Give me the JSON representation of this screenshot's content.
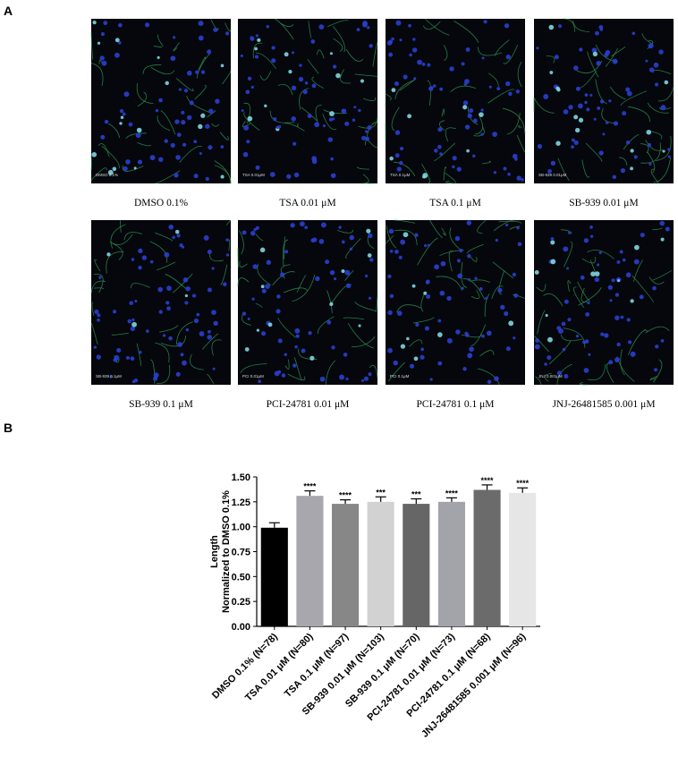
{
  "panel_a": {
    "label": "A",
    "images": [
      {
        "caption": "DMSO 0.1%",
        "tag": "DMSO 0.1%"
      },
      {
        "caption": "TSA 0.01 μM",
        "tag": "TSA 0.01μM"
      },
      {
        "caption": "TSA 0.1 μM",
        "tag": "TSA 0.1μM"
      },
      {
        "caption": "SB-939 0.01 μM",
        "tag": "SB-939 0.01μM"
      },
      {
        "caption": "SB-939 0.1 μM",
        "tag": "SB-939 0.1μM"
      },
      {
        "caption": "PCI-24781 0.01 μM",
        "tag": "PCI 0.01μM"
      },
      {
        "caption": "PCI-24781 0.1 μM",
        "tag": "PCI 0.1μM"
      },
      {
        "caption": "JNJ-26481585 0.001 μM",
        "tag": "JNJ 0.001μM"
      }
    ]
  },
  "panel_b": {
    "label": "B"
  },
  "chart_data": {
    "type": "bar",
    "y_label": [
      "Length",
      "Normalized to DMSO 0.1%"
    ],
    "categories": [
      "DMSO 0.1% (N=78)",
      "TSA 0.01 μM (N=80)",
      "TSA 0.1 μM (N=97)",
      "SB-939 0.01 μM (N=103)",
      "SB-939 0.1 μM (N=70)",
      "PCI-24781 0.01 μM (N=73)",
      "PCI-24781 0.1 μM (N=68)",
      "JNJ-26481585 0.001 μM (N=96)"
    ],
    "values": [
      0.99,
      1.31,
      1.23,
      1.25,
      1.23,
      1.25,
      1.37,
      1.34
    ],
    "errors": [
      0.05,
      0.05,
      0.04,
      0.05,
      0.05,
      0.04,
      0.05,
      0.05
    ],
    "significance": [
      null,
      "****",
      "****",
      "***",
      "***",
      "****",
      "****",
      "****"
    ],
    "colors": [
      "#000000",
      "#a7a7ad",
      "#878787",
      "#d2d2d2",
      "#666666",
      "#a3a3aa",
      "#6b6b6b",
      "#e6e6e6"
    ],
    "ylim": [
      0,
      1.5
    ],
    "yticks": [
      {
        "value": 0,
        "label": "0.00"
      },
      {
        "value": 0.25,
        "label": "0.25"
      },
      {
        "value": 0.5,
        "label": "0.50"
      },
      {
        "value": 0.75,
        "label": "0.75"
      },
      {
        "value": 1,
        "label": "1.00"
      },
      {
        "value": 1.25,
        "label": "1.25"
      },
      {
        "value": 1.5,
        "label": "1.50"
      }
    ]
  }
}
